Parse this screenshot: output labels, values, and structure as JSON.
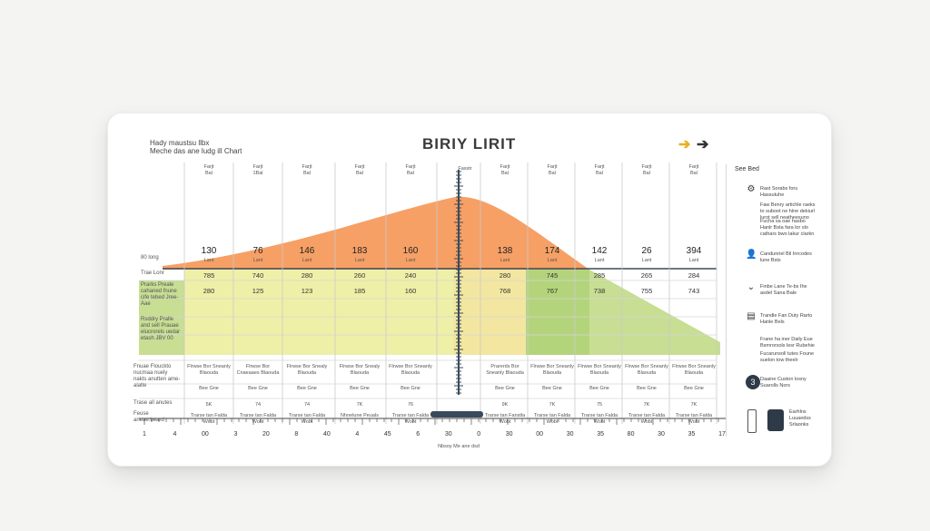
{
  "header": {
    "subtitle_line1": "Hady maustsu llbx",
    "subtitle_line2": "Meche das ane ludg ill Chart",
    "title": "BIRIY LIRIT",
    "arrow_right_icon": "arrow-right-icon",
    "arrow_back_icon": "arrow-icon"
  },
  "column_headers": [
    {
      "l1": "Farjt",
      "l2": "Bal"
    },
    {
      "l1": "Farjt",
      "l2": "1Bal"
    },
    {
      "l1": "Farjt",
      "l2": "Bal"
    },
    {
      "l1": "Farjt",
      "l2": "Bal"
    },
    {
      "l1": "Farjt",
      "l2": "Bal"
    },
    {
      "l1": "Farjt",
      "l2": "Bal"
    },
    {
      "l1": "Farjt",
      "l2": "Bal"
    },
    {
      "l1": "Farjt",
      "l2": "Bal"
    },
    {
      "l1": "Farjt",
      "l2": "Bal"
    },
    {
      "l1": "Farjt",
      "l2": "Bal"
    }
  ],
  "center_header": "Fasstr",
  "top_values": [
    "130",
    "76",
    "146",
    "183",
    "160",
    "138",
    "174",
    "142",
    "26",
    "394"
  ],
  "top_value_units": [
    "Lant",
    "Lant",
    "Lant",
    "Lant",
    "Lant",
    "Lant",
    "Lant",
    "Lant",
    "Lant",
    "Lant"
  ],
  "row_labels": {
    "row1": "80 long",
    "row2": "Trae Lonr",
    "row3": "Prarks Preale cahaned fnune cife tebed Jree-Aae",
    "row4": "Rsddry Pralle and sell Prauae elucrorels uedar etash JBV 00"
  },
  "row2_values": [
    "785",
    "740",
    "280",
    "260",
    "240",
    "280",
    "745",
    "285",
    "265",
    "284"
  ],
  "row3_values": [
    "280",
    "125",
    "123",
    "185",
    "160",
    "768",
    "767",
    "738",
    "755",
    "743"
  ],
  "lower_labels": {
    "l1": "Fnuae Flouckto nucmaa nuely nakts anutten ame-alalte",
    "l2": "Trase all anutes",
    "l3": "Feuse aneae.beard"
  },
  "lower_cells": [
    {
      "a": "Flrwse Bor Sneanly Blaouda",
      "b": "Bee Gne",
      "c": "5K",
      "d": "Trarse tan Falda Wobt"
    },
    {
      "a": "Flrwse Bor Cnaeaaes Blaouda",
      "b": "Bee Gne",
      "c": "74",
      "d": "Trarse tan Falda Wobt"
    },
    {
      "a": "Flrwse Bor Snealy Blaouda",
      "b": "Bee Gne",
      "c": "74",
      "d": "Trarse tan Falda Wobt"
    },
    {
      "a": "Flrwse Bor Snealy Blaouda",
      "b": "Bee Gne",
      "c": "7K",
      "d": "Nhnelune Peuals"
    },
    {
      "a": "Flrwse Bor Sneanly Blaouda",
      "b": "Bee Gne",
      "c": "76",
      "d": "Trarse tan Falda Wobt"
    },
    {
      "a": "Prarerds Bor Sneanly Blaouda",
      "b": "Bee Gne",
      "c": "9K",
      "d": "Trarse tan Fanstla Wobt"
    },
    {
      "a": "Flrwse Bor Sneanly Blaouda",
      "b": "Bee Gne",
      "c": "7K",
      "d": "Trarse tan Falda Wobt"
    },
    {
      "a": "Flrwse Bor Sneanly Blaouda",
      "b": "Bee Gne",
      "c": "75",
      "d": "Trarse tan Falda Wobt"
    },
    {
      "a": "Flrwse Bor Sneanly Blaouda",
      "b": "Bee Gne",
      "c": "7K",
      "d": "Trarse tan Falda Wobt"
    },
    {
      "a": "Flrwse Bor Sneanly Blaouda",
      "b": "Bee Gne",
      "c": "7K",
      "d": "Trarse tan Falda Wobt"
    }
  ],
  "axis_ticks": [
    "1",
    "4",
    "00",
    "3",
    "20",
    "8",
    "40",
    "4",
    "45",
    "6",
    "30",
    "0",
    "30",
    "00",
    "30",
    "35",
    "80",
    "30",
    "35",
    "17"
  ],
  "axis_caption": "Nbsoy Me ane dsd",
  "sidebar": {
    "title": "See Bed",
    "items": [
      {
        "icon": "settings-icon",
        "text": "Rast Sorabs foru Hassutuhe"
      },
      {
        "icon": "",
        "text": "Faw Benry artichle raeks to suboot ne hlne dekiurl lurot sell neatheesuno"
      },
      {
        "icon": "",
        "text": "Fucha sa oae hasbo Hanlr Bsta fara lor slo cathars bwo lakur clarkn"
      },
      {
        "icon": "user-icon",
        "text": "Candunriel Bil Inrcodes lune Bsts"
      },
      {
        "icon": "chevron-down-icon",
        "text": "Finbe Lane Te-bs Ihe asdel Sana Bale"
      },
      {
        "icon": "document-icon",
        "text": "Trandle Fan Duty Rarto Hanle Bels"
      },
      {
        "icon": "",
        "text": "Frane ha iner Daily Eue Bsmrorsols lesr Rubehie"
      },
      {
        "icon": "",
        "text": "Fucarunsoll tutes Foune suelon tow theelr"
      },
      {
        "icon": "number-badge-icon",
        "text": "Daaine Custon losny Suarolls Nors"
      },
      {
        "icon": "phone-icon",
        "text": "Earhlns Luuaedss Srlaonks"
      }
    ],
    "badge_number": "3"
  },
  "colors": {
    "orange": "#f6a066",
    "yellow": "#eef0a8",
    "green": "#c7de93",
    "dark_green": "#b4d47c",
    "slider": "#3a4a5c"
  }
}
